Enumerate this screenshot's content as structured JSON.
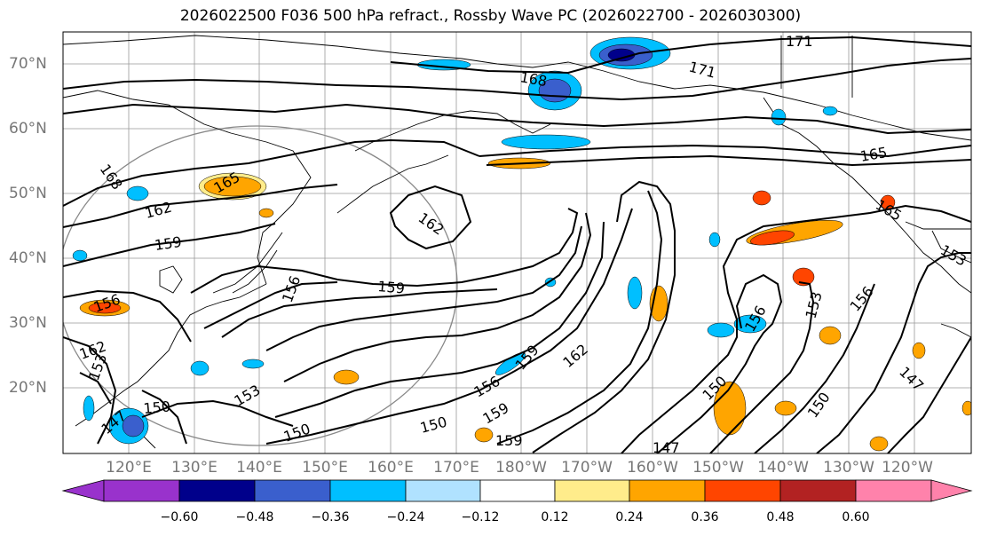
{
  "title": "2026022500 F036 500 hPa refract., Rossby Wave PC (2026022700 - 2026030300)",
  "lat_labels": [
    "70°N",
    "60°N",
    "50°N",
    "40°N",
    "30°N",
    "20°N"
  ],
  "lon_labels": [
    "120°E",
    "130°E",
    "140°E",
    "150°E",
    "160°E",
    "170°E",
    "180°W",
    "170°W",
    "160°W",
    "150°W",
    "140°W",
    "130°W",
    "120°W"
  ],
  "contour_labels": [
    "171",
    "171",
    "168",
    "168",
    "165",
    "165",
    "165",
    "162",
    "162",
    "162",
    "159",
    "159",
    "159",
    "159",
    "159",
    "156",
    "156",
    "156",
    "156",
    "156",
    "153",
    "153",
    "153",
    "150",
    "150",
    "150",
    "150",
    "147",
    "147",
    "147",
    "162",
    "150",
    "153"
  ],
  "colorbar": {
    "ticks": [
      "−0.60",
      "−0.48",
      "−0.36",
      "−0.24",
      "−0.12",
      "0.12",
      "0.24",
      "0.36",
      "0.48",
      "0.60"
    ],
    "colors": [
      "#9932cc",
      "#00008b",
      "#3a5fcd",
      "#00bfff",
      "#b0e2ff",
      "#ffffff",
      "#ffec8b",
      "#ffa500",
      "#ff4500",
      "#b22222",
      "#ff82ab"
    ]
  }
}
